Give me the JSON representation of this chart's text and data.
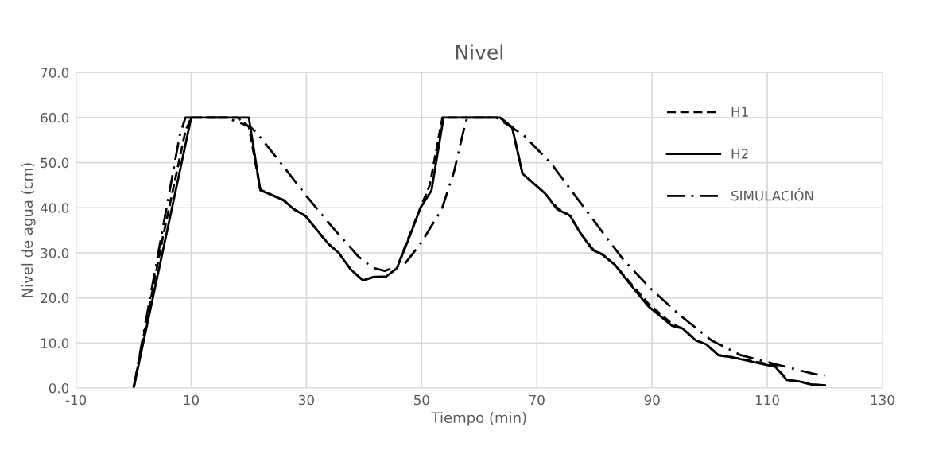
{
  "chart_data": {
    "type": "line",
    "title": "Nivel",
    "xlabel": "Tiempo (min)",
    "ylabel": "Nivel de agua (cm)",
    "xlim": [
      -10,
      130
    ],
    "xticks": [
      -10,
      10,
      30,
      50,
      70,
      90,
      110,
      130
    ],
    "ylim": [
      0,
      70
    ],
    "yticks": [
      {
        "value": 0,
        "label": "0.0"
      },
      {
        "value": 10,
        "label": "10.0"
      },
      {
        "value": 20,
        "label": "20.0"
      },
      {
        "value": 30,
        "label": "30.0"
      },
      {
        "value": 40,
        "label": "40.0"
      },
      {
        "value": 50,
        "label": "50.0"
      },
      {
        "value": 60,
        "label": "60.0"
      },
      {
        "value": 70,
        "label": "70.0"
      }
    ],
    "grid": true,
    "legend": "top right",
    "marker": "none",
    "series": [
      {
        "name": "H1",
        "color": "#000000",
        "line_style": "dashed",
        "x": [
          0,
          5,
          9,
          10,
          18,
          20,
          22,
          26,
          27.8,
          29.8,
          33.8,
          35.6,
          37.7,
          39.8,
          41.8,
          43.8,
          45.7,
          47.6,
          49.8,
          51.4,
          53.6,
          63.6,
          65.7,
          67.5,
          71.4,
          73.5,
          75.8,
          77.4,
          79.7,
          81.3,
          83.6,
          85.9,
          89.3,
          93.5,
          95.3,
          97.6,
          99.4,
          101.5,
          104,
          111.4,
          113.4,
          115.5,
          117.6,
          120
        ],
        "values": [
          0,
          33,
          57,
          60,
          60,
          58,
          44,
          41.7,
          39.7,
          38.2,
          32,
          30,
          26.3,
          23.9,
          24.7,
          24.7,
          26.6,
          33,
          40,
          45,
          60,
          60,
          57.9,
          47.6,
          43.2,
          40,
          38.2,
          34.7,
          30.8,
          29.7,
          27.3,
          23.8,
          18.8,
          14.2,
          13.2,
          10.6,
          9.7,
          7.3,
          6.8,
          5,
          1.8,
          1.5,
          0.8,
          0.6
        ]
      },
      {
        "name": "H2",
        "color": "#000000",
        "line_style": "solid",
        "x": [
          0,
          10,
          20,
          22,
          26,
          27.8,
          29.8,
          33.8,
          35.6,
          37.7,
          39.8,
          41.8,
          43.8,
          45.7,
          47.6,
          49.8,
          51.7,
          53.8,
          63.6,
          65.7,
          67.5,
          71.4,
          73.5,
          75.8,
          77.4,
          79.7,
          81.3,
          83.6,
          85.9,
          89.3,
          93.5,
          95.3,
          97.6,
          99.4,
          101.5,
          104,
          111.4,
          113.4,
          115.5,
          117.6,
          120
        ],
        "values": [
          0,
          60,
          60,
          43.9,
          41.7,
          39.7,
          38.2,
          32,
          30,
          26.3,
          23.9,
          24.7,
          24.7,
          26.6,
          32.6,
          40,
          43.8,
          60,
          60,
          57.9,
          47.6,
          43.2,
          39.7,
          38.2,
          34.7,
          30.6,
          29.7,
          27.3,
          23.5,
          18.2,
          13.8,
          13.2,
          10.6,
          9.7,
          7.3,
          6.8,
          4.7,
          1.8,
          1.5,
          0.8,
          0.6
        ]
      },
      {
        "name": "SIMULACIÓN",
        "color": "#000000",
        "line_style": "dashdot",
        "x": [
          0,
          8,
          9,
          16,
          20.2,
          21.5,
          25.7,
          30,
          34.5,
          39,
          41.5,
          43.6,
          47.1,
          49.8,
          53.5,
          55.6,
          57.2,
          57.9,
          63,
          67.7,
          72.5,
          76.7,
          80.8,
          85,
          89.8,
          94.8,
          100.3,
          105.4,
          111.4,
          118.2,
          120
        ],
        "values": [
          0,
          56,
          60,
          60,
          58,
          56.4,
          49.7,
          42.6,
          35.7,
          29.2,
          26.7,
          26,
          27.6,
          32,
          39.7,
          47.9,
          56.7,
          60,
          60,
          56.1,
          49.8,
          42.6,
          35.6,
          28.5,
          22,
          16.2,
          10.6,
          7.3,
          5.3,
          3.1,
          2.8
        ]
      }
    ]
  }
}
